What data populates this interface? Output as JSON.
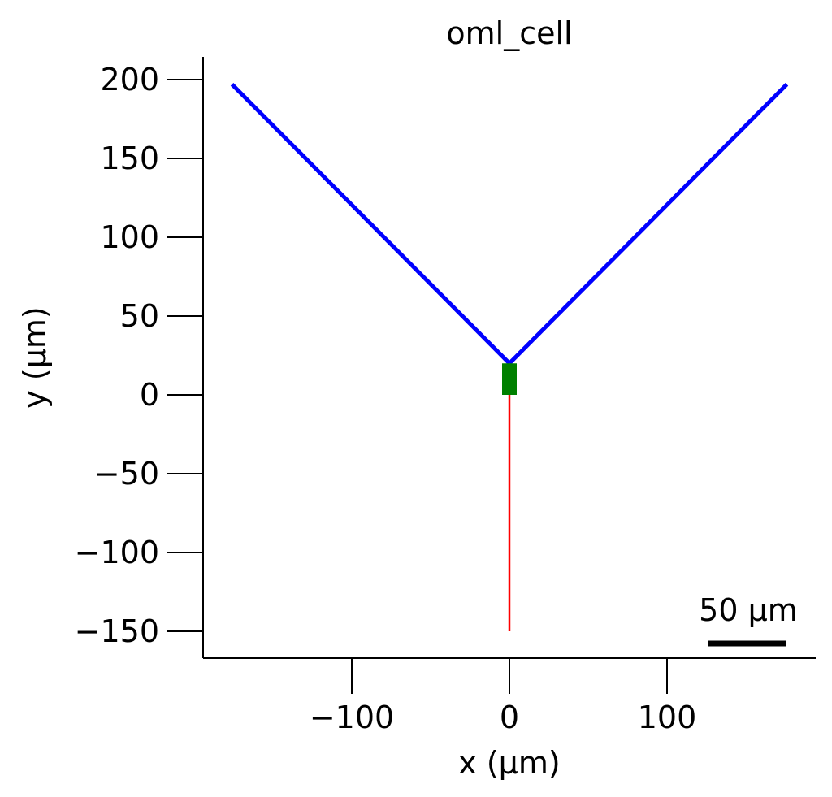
{
  "chart_data": {
    "type": "line",
    "title": "oml_cell",
    "xlabel": "x (µm)",
    "ylabel": "y (µm)",
    "xlim": [
      -195,
      195
    ],
    "ylim": [
      -167,
      214
    ],
    "xticks": [
      {
        "value": -100,
        "label": "−100"
      },
      {
        "value": 0,
        "label": "0"
      },
      {
        "value": 100,
        "label": "100"
      }
    ],
    "yticks": [
      {
        "value": 200,
        "label": "200"
      },
      {
        "value": 150,
        "label": "150"
      },
      {
        "value": 100,
        "label": "100"
      },
      {
        "value": 50,
        "label": "50"
      },
      {
        "value": 0,
        "label": "0"
      },
      {
        "value": -50,
        "label": "−50"
      },
      {
        "value": -100,
        "label": "−100"
      },
      {
        "value": -150,
        "label": "−150"
      }
    ],
    "grid": false,
    "series": [
      {
        "color": "#0000ff",
        "x": [
          0,
          -176
        ],
        "y": [
          20,
          197
        ]
      },
      {
        "color": "#0000ff",
        "x": [
          0,
          176
        ],
        "y": [
          20,
          197
        ]
      },
      {
        "color": "#008000",
        "x": [
          0,
          0
        ],
        "y": [
          0,
          20
        ]
      },
      {
        "color": "#ff0000",
        "x": [
          0,
          0
        ],
        "y": [
          0,
          -150
        ]
      }
    ],
    "scalebar": {
      "length": 50,
      "label": "50 µm"
    }
  }
}
